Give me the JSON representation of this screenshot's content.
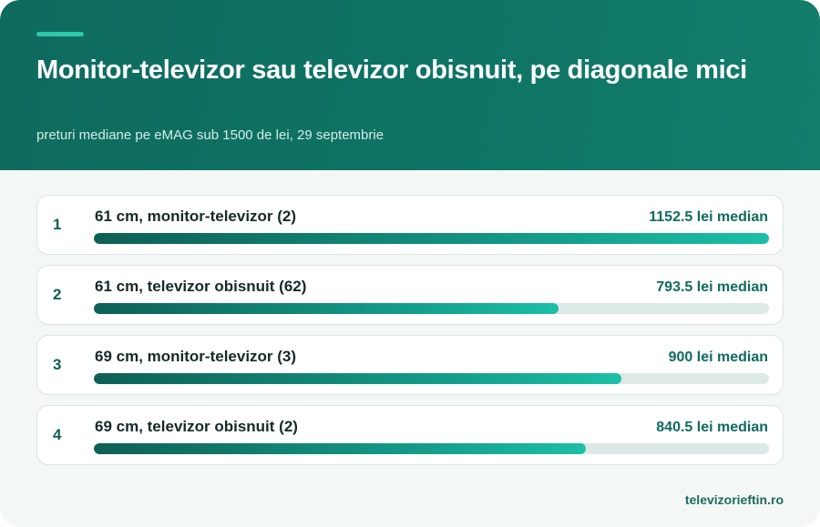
{
  "header": {
    "title": "Monitor-televizor sau televizor obisnuit, pe diagonale mici",
    "subtitle": "preturi mediane pe eMAG sub 1500 de lei, 29 septembrie"
  },
  "footer": {
    "brand": "televizorieftin.ro"
  },
  "colors": {
    "header": "#0f6a5e",
    "accent": "#2cc9ad",
    "bar_start": "#0e5f55",
    "bar_end": "#1cbfa6",
    "track": "#dde9e6"
  },
  "chart_data": {
    "type": "bar",
    "orientation": "horizontal",
    "title": "Monitor-televizor sau televizor obisnuit, pe diagonale mici",
    "subtitle": "preturi mediane pe eMAG sub 1500 de lei, 29 septembrie",
    "xlim": [
      0,
      1152.5
    ],
    "categories": [
      "61 cm, monitor-televizor (2)",
      "61 cm, televizor obisnuit (62)",
      "69 cm, monitor-televizor (3)",
      "69 cm, televizor obisnuit (2)"
    ],
    "values": [
      1152.5,
      793.5,
      900,
      840.5
    ],
    "ranks": [
      "1",
      "2",
      "3",
      "4"
    ],
    "value_labels": [
      "1152.5 lei median",
      "793.5 lei median",
      "900 lei median",
      "840.5 lei median"
    ]
  }
}
